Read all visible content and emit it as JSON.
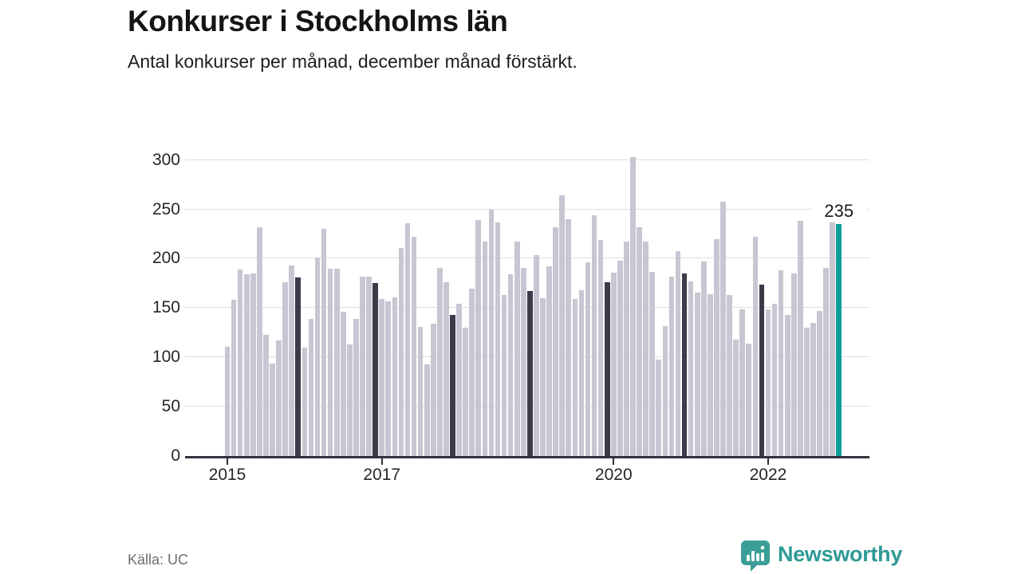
{
  "header": {
    "title": "Konkurser i Stockholms län",
    "subtitle": "Antal konkurser per månad, december månad förstärkt."
  },
  "chart_data": {
    "type": "bar",
    "x_start": "2015-01",
    "frequency": "monthly",
    "values": [
      111,
      158,
      189,
      184,
      185,
      232,
      123,
      94,
      117,
      176,
      193,
      181,
      110,
      139,
      201,
      230,
      190,
      190,
      146,
      113,
      139,
      182,
      182,
      175,
      159,
      157,
      161,
      211,
      236,
      222,
      131,
      93,
      134,
      191,
      176,
      143,
      154,
      130,
      170,
      239,
      217,
      250,
      237,
      163,
      184,
      217,
      191,
      167,
      204,
      160,
      192,
      232,
      264,
      240,
      159,
      168,
      196,
      244,
      219,
      176,
      186,
      198,
      217,
      303,
      232,
      217,
      187,
      98,
      132,
      182,
      208,
      185,
      177,
      166,
      197,
      164,
      220,
      258,
      163,
      118,
      149,
      114,
      222,
      174,
      149,
      154,
      188,
      143,
      185,
      238,
      130,
      135,
      147,
      191,
      242,
      235
    ],
    "highlight_rule": "every December bar dark; latest bar (Dec 2022) teal",
    "final_value_label": "235",
    "yticks": [
      0,
      50,
      100,
      150,
      200,
      250,
      300
    ],
    "ylim": [
      0,
      310
    ],
    "xticks": [
      "2015",
      "2017",
      "2020",
      "2022"
    ],
    "grid": "horizontal",
    "colors": {
      "bar_normal": "#c8c6d2",
      "bar_december": "#3c3b4a",
      "bar_latest": "#0b9f97",
      "gridline": "#dedde2",
      "axis": "#33323c"
    }
  },
  "footer": {
    "source": "Källa: UC",
    "brand": "Newsworthy"
  }
}
